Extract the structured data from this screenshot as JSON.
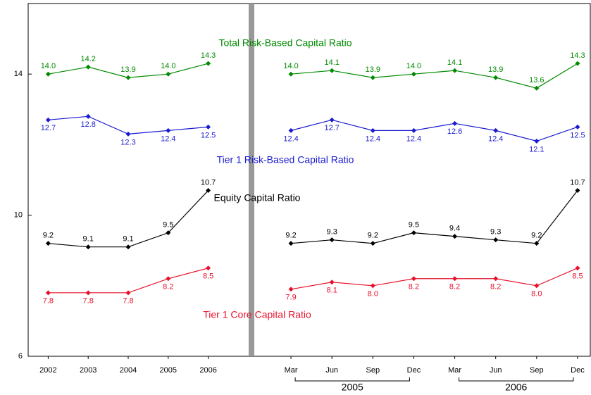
{
  "chart_data": [
    {
      "type": "line",
      "categories": [
        "2002",
        "2003",
        "2004",
        "2005",
        "2006"
      ],
      "ylim": [
        6,
        16
      ],
      "yticks": [
        6,
        10,
        14
      ],
      "series": [
        {
          "name": "Total Risk-Based Capital Ratio",
          "color": "#008a00",
          "values": [
            14.0,
            14.2,
            13.9,
            14.0,
            14.3
          ],
          "value_labels": [
            "14.0",
            "14.2",
            "13.9",
            "14.0",
            "14.3"
          ]
        },
        {
          "name": "Tier 1 Risk-Based Capital Ratio",
          "color": "#1a1ad0",
          "values": [
            12.7,
            12.8,
            12.3,
            12.4,
            12.5
          ],
          "value_labels": [
            "12.7",
            "12.8",
            "12.3",
            "12.4",
            "12.5"
          ]
        },
        {
          "name": "Equity Capital Ratio",
          "color": "#000000",
          "values": [
            9.2,
            9.1,
            9.1,
            9.5,
            10.7
          ],
          "value_labels": [
            "9.2",
            "9.1",
            "9.1",
            "9.5",
            "10.7"
          ]
        },
        {
          "name": "Tier 1 Core Capital Ratio",
          "color": "#e8102a",
          "values": [
            7.8,
            7.8,
            7.8,
            8.2,
            8.5
          ],
          "value_labels": [
            "7.8",
            "7.8",
            "7.8",
            "8.2",
            "8.5"
          ]
        }
      ]
    },
    {
      "type": "line",
      "categories": [
        "Mar",
        "Jun",
        "Sep",
        "Dec",
        "Mar",
        "Jun",
        "Sep",
        "Dec"
      ],
      "year_groups": [
        "2005",
        "2006"
      ],
      "ylim": [
        6,
        16
      ],
      "series": [
        {
          "color": "#008a00",
          "values": [
            14.0,
            14.1,
            13.9,
            14.0,
            14.1,
            13.9,
            13.6,
            14.3
          ],
          "value_labels": [
            "14.0",
            "14.1",
            "13.9",
            "14.0",
            "14.1",
            "13.9",
            "13.6",
            "14.3"
          ]
        },
        {
          "color": "#1a1ad0",
          "values": [
            12.4,
            12.7,
            12.4,
            12.4,
            12.6,
            12.4,
            12.1,
            12.5
          ],
          "value_labels": [
            "12.4",
            "12.7",
            "12.4",
            "12.4",
            "12.6",
            "12.4",
            "12.1",
            "12.5"
          ]
        },
        {
          "color": "#000000",
          "values": [
            9.2,
            9.3,
            9.2,
            9.5,
            9.4,
            9.3,
            9.2,
            10.7
          ],
          "value_labels": [
            "9.2",
            "9.3",
            "9.2",
            "9.5",
            "9.4",
            "9.3",
            "9.2",
            "10.7"
          ]
        },
        {
          "color": "#e8102a",
          "values": [
            7.9,
            8.1,
            8.0,
            8.2,
            8.2,
            8.2,
            8.0,
            8.5
          ],
          "value_labels": [
            "7.9",
            "8.1",
            "8.0",
            "8.2",
            "8.2",
            "8.2",
            "8.0",
            "8.5"
          ]
        }
      ]
    }
  ]
}
